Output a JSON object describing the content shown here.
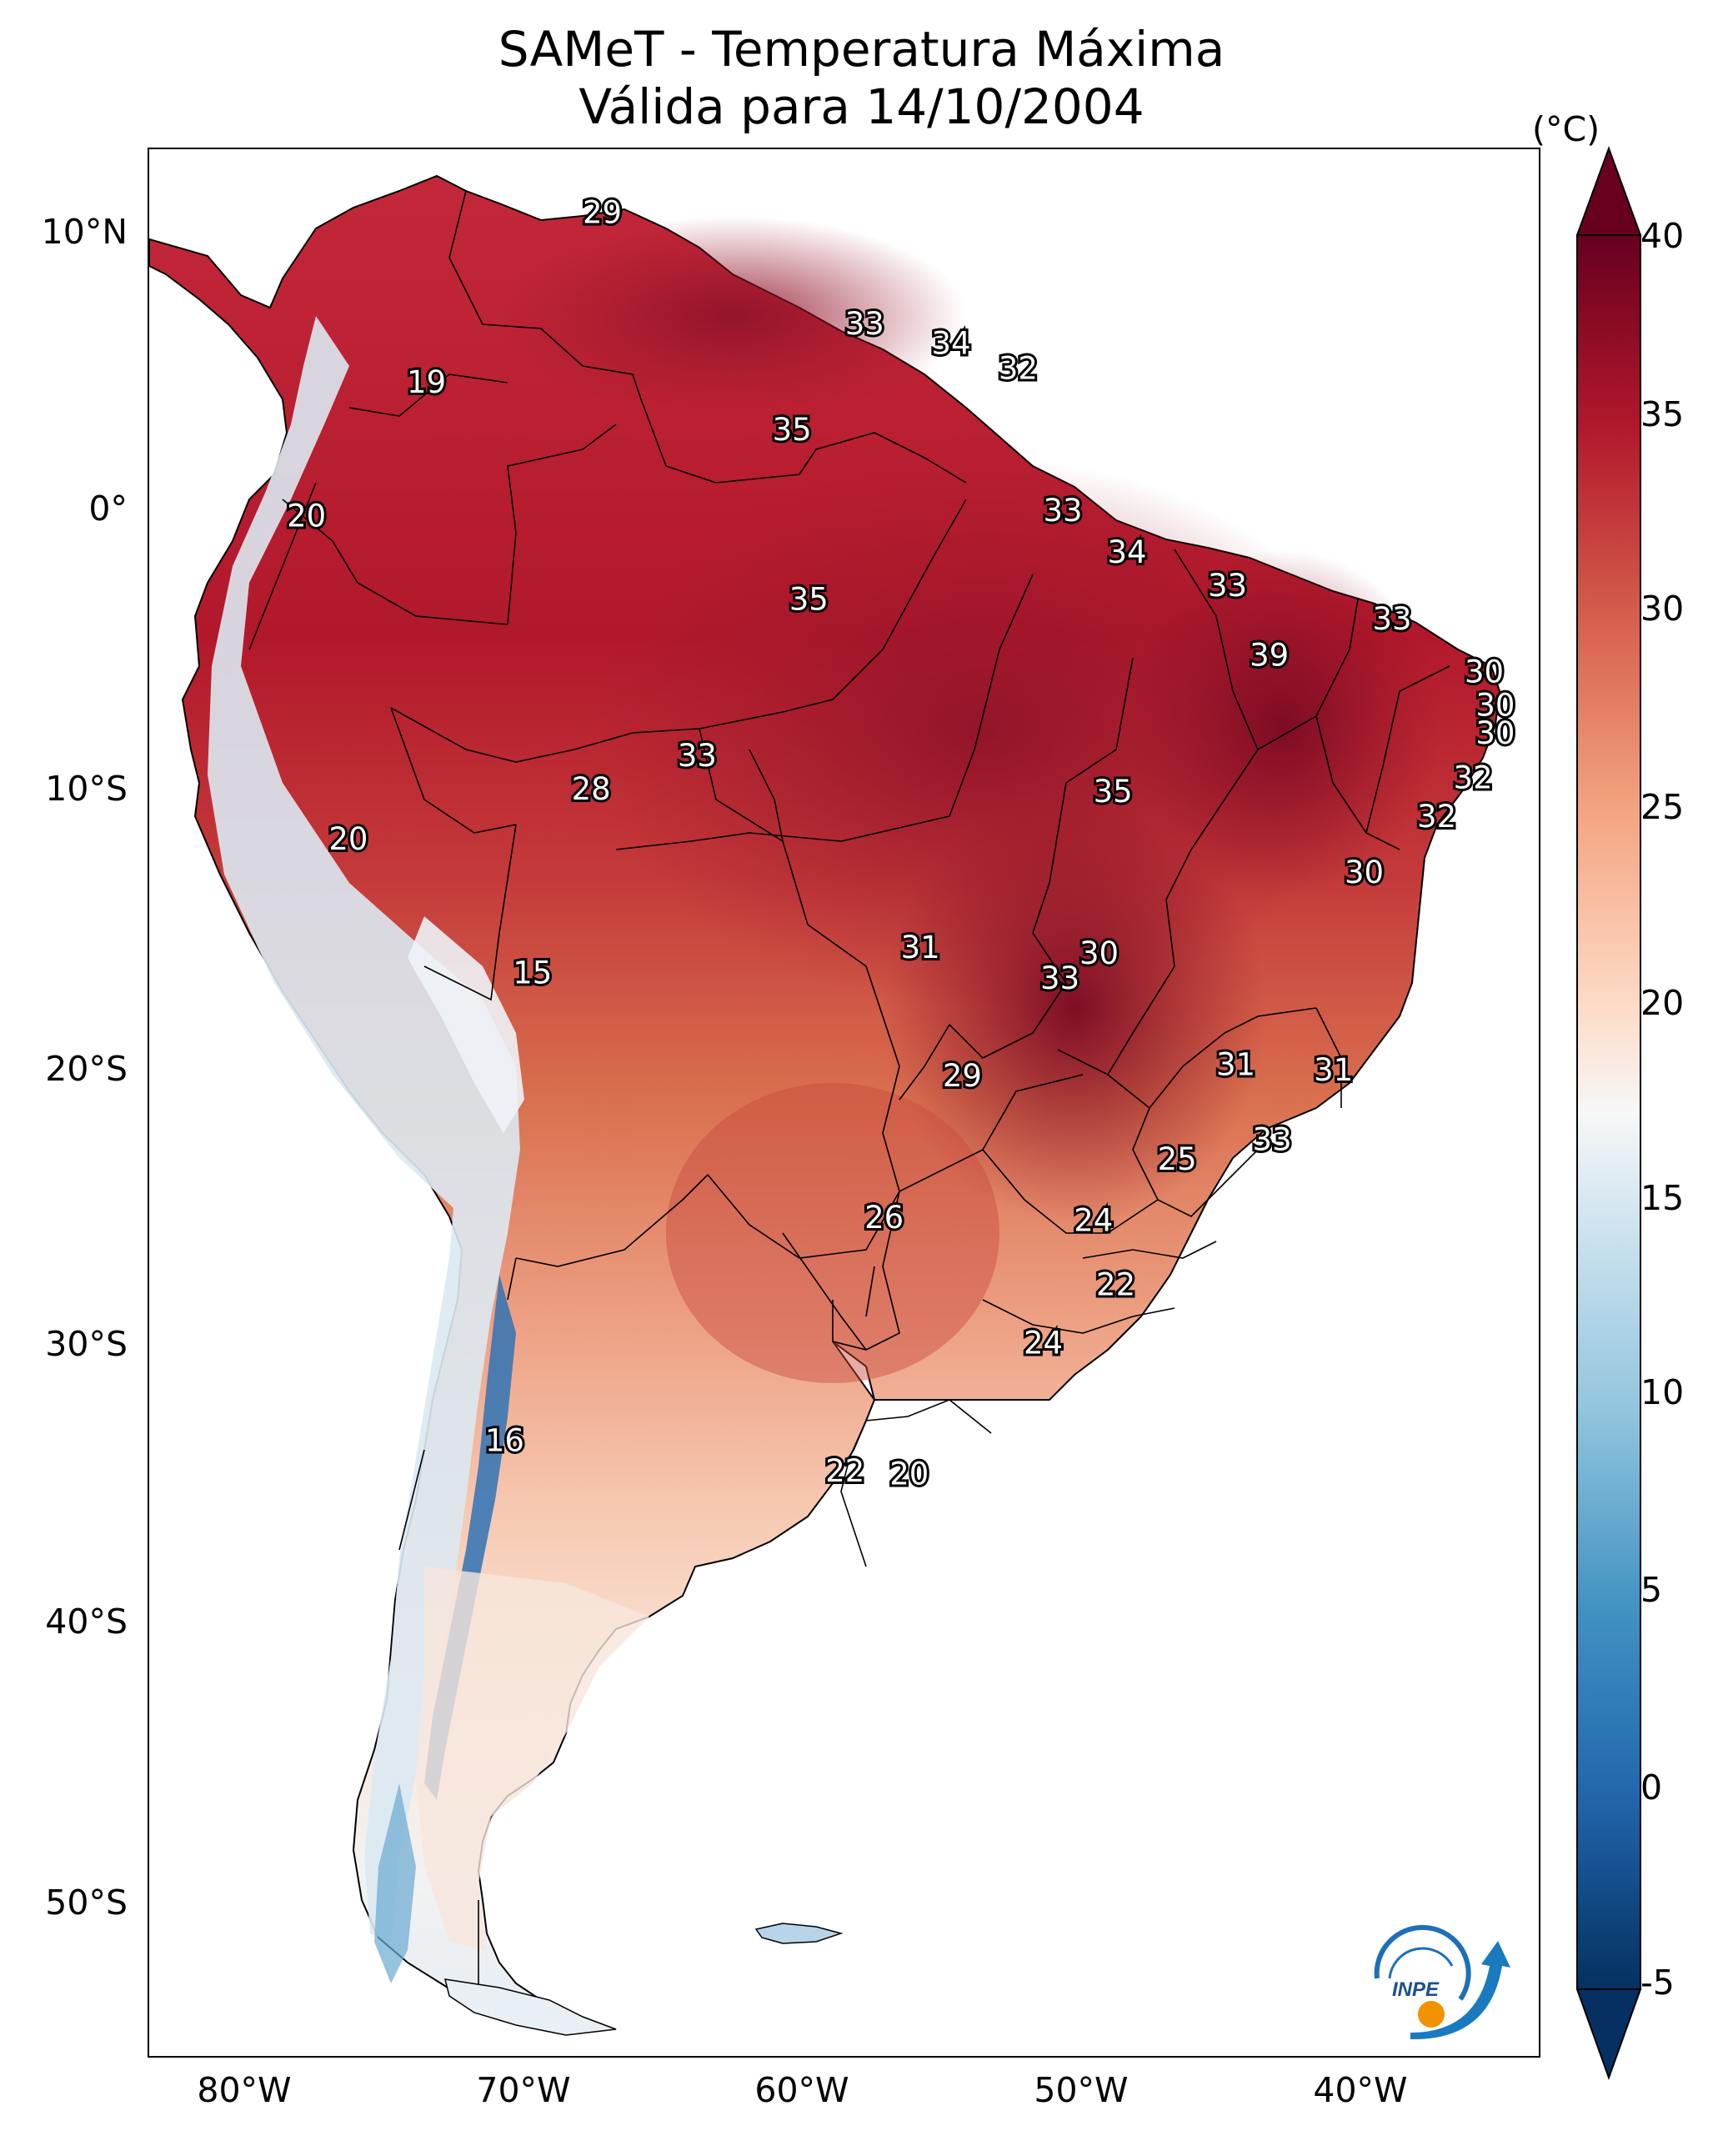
{
  "title": {
    "line1": "SAMeT - Temperatura Máxima",
    "line2": "Válida para 14/10/2004"
  },
  "axes": {
    "lat_labels": [
      "10°N",
      "0°",
      "10°S",
      "20°S",
      "30°S",
      "40°S",
      "50°S"
    ],
    "lon_labels": [
      "80°W",
      "70°W",
      "60°W",
      "50°W",
      "40°W"
    ]
  },
  "colorbar": {
    "unit": "(°C)",
    "ticks": [
      "40",
      "35",
      "30",
      "25",
      "20",
      "15",
      "10",
      "5",
      "0",
      "-5"
    ],
    "min": -5,
    "max": 40,
    "extend": "both",
    "colors": {
      "max": "#67001f",
      "hot": "#b2182b",
      "warm": "#d6604d",
      "mild": "#f4a582",
      "light": "#fddbc7",
      "neutral": "#f7f7f7",
      "cool": "#d1e5f0",
      "cold": "#92c5de",
      "colder": "#4393c3",
      "coldest": "#2166ac",
      "min": "#053061"
    }
  },
  "value_labels": [
    {
      "text": "29",
      "lat": 10.6,
      "lon": -67.2
    },
    {
      "text": "33",
      "lat": 6.6,
      "lon": -57.8
    },
    {
      "text": "34",
      "lat": 5.9,
      "lon": -54.7
    },
    {
      "text": "32",
      "lat": 5.0,
      "lon": -52.3
    },
    {
      "text": "19",
      "lat": 4.5,
      "lon": -73.5
    },
    {
      "text": "35",
      "lat": 2.8,
      "lon": -60.4
    },
    {
      "text": "20",
      "lat": -0.3,
      "lon": -77.8
    },
    {
      "text": "33",
      "lat": -0.1,
      "lon": -50.7
    },
    {
      "text": "34",
      "lat": -1.6,
      "lon": -48.4
    },
    {
      "text": "33",
      "lat": -2.8,
      "lon": -44.8
    },
    {
      "text": "35",
      "lat": -3.3,
      "lon": -59.8
    },
    {
      "text": "33",
      "lat": -4.0,
      "lon": -38.9
    },
    {
      "text": "39",
      "lat": -5.3,
      "lon": -43.3
    },
    {
      "text": "30",
      "lat": -5.9,
      "lon": -35.6
    },
    {
      "text": "30",
      "lat": -7.1,
      "lon": -35.2
    },
    {
      "text": "30",
      "lat": -8.1,
      "lon": -35.2
    },
    {
      "text": "33",
      "lat": -8.9,
      "lon": -63.8
    },
    {
      "text": "32",
      "lat": -9.7,
      "lon": -36.0
    },
    {
      "text": "28",
      "lat": -10.1,
      "lon": -67.6
    },
    {
      "text": "35",
      "lat": -10.2,
      "lon": -48.9
    },
    {
      "text": "32",
      "lat": -11.1,
      "lon": -37.3
    },
    {
      "text": "20",
      "lat": -11.9,
      "lon": -76.3
    },
    {
      "text": "30",
      "lat": -13.1,
      "lon": -39.9
    },
    {
      "text": "31",
      "lat": -15.8,
      "lon": -55.8
    },
    {
      "text": "30",
      "lat": -16.0,
      "lon": -49.4
    },
    {
      "text": "15",
      "lat": -16.7,
      "lon": -69.7
    },
    {
      "text": "33",
      "lat": -16.9,
      "lon": -50.8
    },
    {
      "text": "29",
      "lat": -20.4,
      "lon": -54.3
    },
    {
      "text": "31",
      "lat": -20.0,
      "lon": -44.5
    },
    {
      "text": "31",
      "lat": -20.2,
      "lon": -41.0
    },
    {
      "text": "33",
      "lat": -22.7,
      "lon": -43.2
    },
    {
      "text": "25",
      "lat": -23.4,
      "lon": -46.6
    },
    {
      "text": "26",
      "lat": -25.5,
      "lon": -57.1
    },
    {
      "text": "24",
      "lat": -25.6,
      "lon": -49.6
    },
    {
      "text": "22",
      "lat": -27.9,
      "lon": -48.8
    },
    {
      "text": "24",
      "lat": -30.0,
      "lon": -51.4
    },
    {
      "text": "16",
      "lat": -33.5,
      "lon": -70.7
    },
    {
      "text": "22",
      "lat": -34.6,
      "lon": -58.5
    },
    {
      "text": "20",
      "lat": -34.7,
      "lon": -56.2
    }
  ],
  "logo": {
    "text": "INPE"
  }
}
